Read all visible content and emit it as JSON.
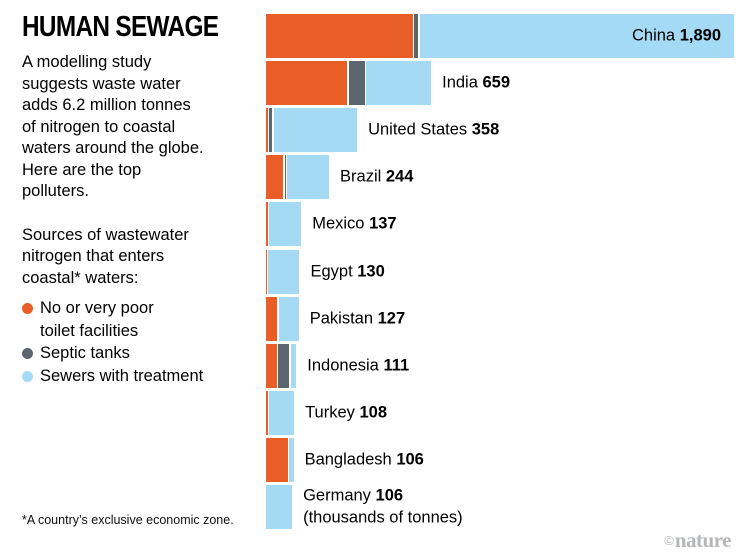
{
  "title": "HUMAN SEWAGE",
  "intro": "A modelling study\nsuggests waste water\nadds 6.2 million tonnes\nof nitrogen to coastal\nwaters around the globe.\nHere are the top\npolluters.",
  "legend": {
    "heading": "Sources of wastewater\nnitrogen that enters\ncoastal* waters:",
    "items": [
      {
        "label": "No or very poor\ntoilet facilities",
        "color": "#e95e27"
      },
      {
        "label": "Septic tanks",
        "color": "#5b6670"
      },
      {
        "label": "Sewers with treatment",
        "color": "#a5daf5"
      }
    ]
  },
  "footnote": "*A country’s exclusive economic zone.",
  "watermark": {
    "copyright": "©",
    "brand": "nature"
  },
  "colors": {
    "no_toilet": "#e95e27",
    "septic": "#5b6670",
    "sewers": "#a5daf5",
    "text": "#000000",
    "watermark": "#b4b6b8"
  },
  "chart_data": {
    "type": "bar",
    "orientation": "horizontal",
    "stacked": true,
    "grid": false,
    "legend_position": "left-panel",
    "unit": "thousands of tonnes",
    "unit_note": "(thousands of tonnes)",
    "xlim": [
      0,
      1890
    ],
    "categories": [
      "China",
      "India",
      "United States",
      "Brazil",
      "Mexico",
      "Egypt",
      "Pakistan",
      "Indonesia",
      "Turkey",
      "Bangladesh",
      "Germany"
    ],
    "totals": [
      1890,
      659,
      358,
      244,
      137,
      130,
      127,
      111,
      108,
      106,
      106
    ],
    "total_labels": [
      "1,890",
      "659",
      "358",
      "244",
      "137",
      "130",
      "127",
      "111",
      "108",
      "106",
      "106"
    ],
    "series": [
      {
        "key": "no-toilet",
        "name": "No or very poor toilet facilities",
        "color": "#e95e27",
        "values": [
          596,
          330,
          8,
          70,
          8,
          4,
          45,
          44,
          8,
          88,
          0
        ]
      },
      {
        "key": "septic-tanks",
        "name": "Septic tanks",
        "color": "#5b6670",
        "values": [
          16,
          65,
          12,
          5,
          0,
          0,
          0,
          44,
          0,
          0,
          0
        ]
      },
      {
        "key": "sewers-treatment",
        "name": "Sewers with treatment",
        "color": "#a5daf5",
        "values": [
          1278,
          264,
          338,
          169,
          129,
          126,
          82,
          23,
          100,
          18,
          106
        ]
      }
    ]
  }
}
